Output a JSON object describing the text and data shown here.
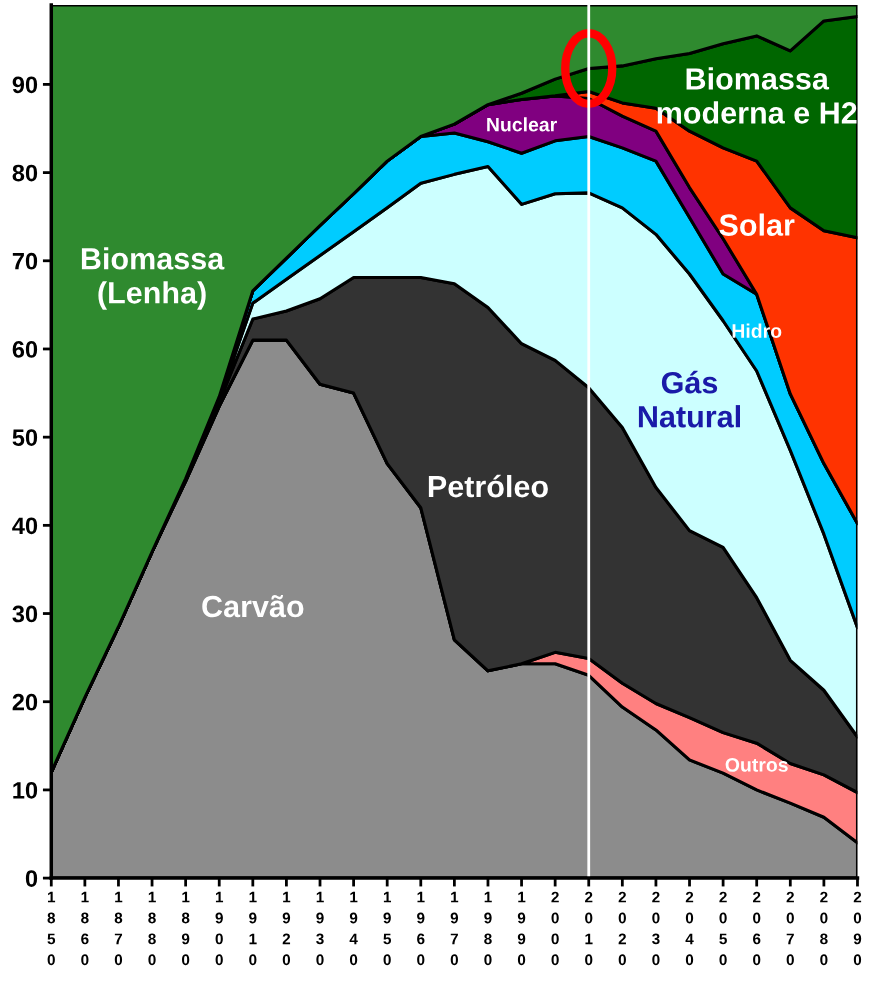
{
  "chart_data": {
    "type": "area",
    "stacked": true,
    "categories": [
      "1\n8\n5\n0",
      "1\n8\n6\n0",
      "1\n8\n7\n0",
      "1\n8\n8\n0",
      "1\n8\n9\n0",
      "1\n9\n0\n0",
      "1\n9\n1\n0",
      "1\n9\n2\n0",
      "1\n9\n3\n0",
      "1\n9\n4\n0",
      "1\n9\n5\n0",
      "1\n9\n6\n0",
      "1\n9\n7\n0",
      "1\n9\n8\n0",
      "1\n9\n9\n0",
      "2\n0\n0\n0",
      "2\n0\n1\n0",
      "2\n0\n2\n0",
      "2\n0\n3\n0",
      "2\n0\n4\n0",
      "2\n0\n5\n0",
      "2\n0\n6\n0",
      "2\n0\n7\n0",
      "2\n0\n8\n0",
      "2\n0\n9\n0"
    ],
    "series": [
      {
        "name": "Carvão",
        "color": "#8c8c8c",
        "values": [
          12,
          20.5,
          28.5,
          37,
          45,
          53.5,
          61,
          61,
          56,
          55,
          47,
          42,
          27,
          23.5,
          24.3,
          24.3,
          23,
          19.4,
          16.8,
          13.4,
          11.9,
          10,
          8.5,
          6.9,
          4
        ]
      },
      {
        "name": "Outros",
        "color": "#ff8080",
        "values": [
          0,
          0,
          0,
          0,
          0,
          0,
          0,
          0,
          0,
          0,
          0,
          0,
          0,
          0,
          0,
          1.3,
          1.9,
          2.7,
          3.0,
          4.8,
          4.6,
          5.3,
          4.5,
          4.8,
          5.7
        ]
      },
      {
        "name": "Petróleo",
        "color": "#333333",
        "values": [
          0,
          0,
          0,
          0,
          0.3,
          0.5,
          2.4,
          3.3,
          9.7,
          13.1,
          21.1,
          26.1,
          40.4,
          41.2,
          36.3,
          33.1,
          30.7,
          29,
          24.5,
          21.2,
          21,
          16.5,
          11.7,
          9.6,
          6.3
        ]
      },
      {
        "name": "Gás\nNatural",
        "color": "#ccffff",
        "values": [
          0,
          0,
          0,
          0,
          0,
          0.3,
          1.8,
          3.6,
          4.9,
          5.2,
          7.9,
          10.7,
          12.4,
          16,
          15.8,
          18.9,
          22.1,
          24.9,
          28.7,
          29.1,
          25.7,
          25.7,
          23.8,
          17.7,
          12.4
        ]
      },
      {
        "name": "Hidro",
        "color": "#00ccff",
        "values": [
          0,
          0,
          0,
          0,
          0,
          0.3,
          1.4,
          2.4,
          3.4,
          4.3,
          5.3,
          5.3,
          4.7,
          2.8,
          5.8,
          6.0,
          6.4,
          6.8,
          8.3,
          6.4,
          5.3,
          8.7,
          6.4,
          8,
          11.8
        ]
      },
      {
        "name": "Nuclear",
        "color": "#800080",
        "values": [
          0,
          0,
          0,
          0,
          0,
          0,
          0,
          0,
          0,
          0,
          0,
          0,
          1.0,
          4.2,
          6.1,
          5.1,
          4.3,
          3.6,
          3.4,
          3.4,
          4.0,
          0,
          0,
          0,
          0
        ]
      },
      {
        "name": "Solar",
        "color": "#ff3300",
        "values": [
          0,
          0,
          0,
          0,
          0,
          0,
          0,
          0,
          0,
          0,
          0,
          0,
          0,
          0,
          0,
          0,
          0.8,
          1.5,
          2.6,
          6.4,
          10.3,
          15.1,
          21.1,
          26.4,
          32.4
        ]
      },
      {
        "name": "Biomassa\nmoderna e H2",
        "color": "#006600",
        "values": [
          0,
          0,
          0,
          0,
          0,
          0,
          0,
          0,
          0,
          0,
          0,
          0,
          0,
          0,
          0.7,
          1.9,
          2.6,
          4.2,
          5.6,
          8.8,
          11.8,
          14.2,
          17.8,
          23.8,
          25.1
        ]
      },
      {
        "name": "Biomassa\n(Lenha)",
        "color": "#2f8a2f",
        "values": [
          87,
          78.5,
          70.5,
          62,
          53.7,
          44.4,
          32.4,
          28.7,
          25,
          21.4,
          17.7,
          14.9,
          13.5,
          11.3,
          10,
          8.4,
          7.2,
          6.9,
          6.1,
          5.5,
          4.4,
          3.5,
          5.2,
          1.8,
          1.3
        ]
      }
    ],
    "ylim": [
      0,
      99
    ],
    "yticks": [
      0,
      10,
      20,
      30,
      40,
      50,
      60,
      70,
      80,
      90
    ],
    "ref_lines": [
      {
        "axis": "x",
        "value": "2\n0\n1\n0",
        "color": "#ffffff"
      }
    ],
    "grid": false,
    "legend": false
  }
}
